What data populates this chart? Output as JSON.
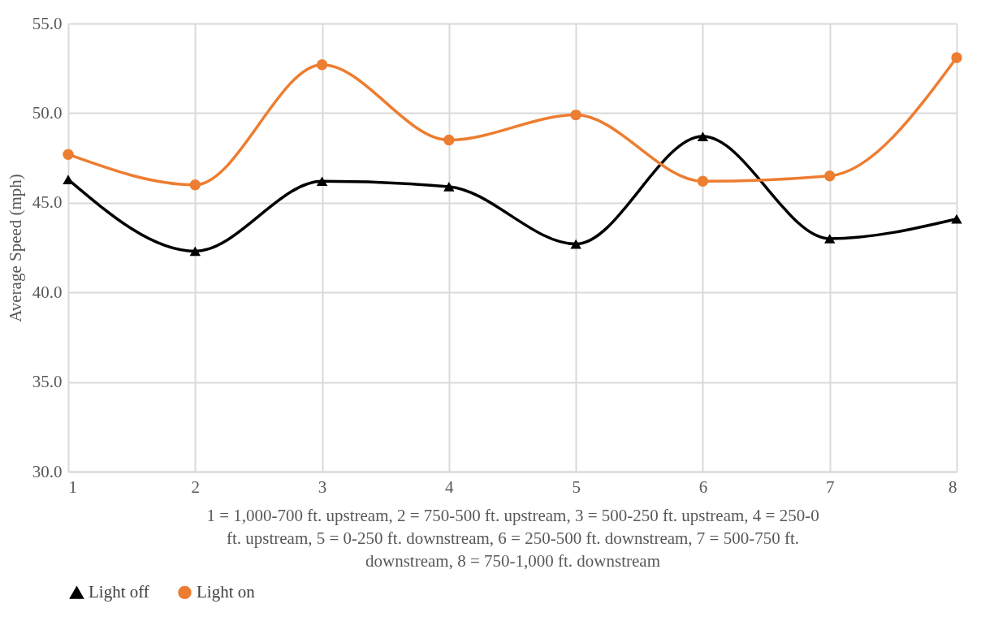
{
  "chart_data": {
    "type": "line",
    "xlabel": "1 = 1,000-700 ft. upstream, 2 = 750-500 ft. upstream, 3 = 500-250 ft. upstream, 4 = 250-0 ft. upstream, 5 = 0-250 ft. downstream, 6 = 250-500 ft. downstream, 7 = 500-750 ft. downstream, 8 = 750-1,000 ft. downstream",
    "ylabel": "Average Speed (mph)",
    "x": [
      1,
      2,
      3,
      4,
      5,
      6,
      7,
      8
    ],
    "series": [
      {
        "name": "Light off",
        "color": "#000000",
        "marker": "triangle",
        "values": [
          46.3,
          42.3,
          46.2,
          45.9,
          42.7,
          48.7,
          43.0,
          44.1
        ]
      },
      {
        "name": "Light on",
        "color": "#ed7d31",
        "marker": "circle",
        "values": [
          47.7,
          46.0,
          52.7,
          48.5,
          49.9,
          46.2,
          46.5,
          53.1
        ]
      }
    ],
    "xlim": [
      1,
      8
    ],
    "xticks": [
      1,
      2,
      3,
      4,
      5,
      6,
      7,
      8
    ],
    "ylim": [
      30,
      55
    ],
    "yticks": [
      {
        "value": 30,
        "label": "30.0"
      },
      {
        "value": 35,
        "label": "35.0"
      },
      {
        "value": 40,
        "label": "40.0"
      },
      {
        "value": 45,
        "label": "45.0"
      },
      {
        "value": 50,
        "label": "50.0"
      },
      {
        "value": 55,
        "label": "55.0"
      }
    ],
    "grid": true,
    "legend": "bottom",
    "line_style": "solid"
  }
}
